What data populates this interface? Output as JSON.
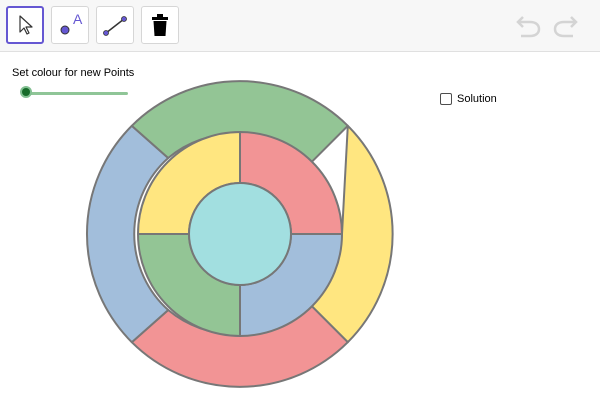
{
  "toolbar": {
    "tools": [
      {
        "icon": "arrow-pointer-icon",
        "selected": true
      },
      {
        "icon": "point-label-icon",
        "label": "A",
        "selected": false
      },
      {
        "icon": "segment-icon",
        "selected": false
      },
      {
        "icon": "trash-icon",
        "selected": false
      }
    ],
    "undo_icon": "undo-icon",
    "redo_icon": "redo-icon"
  },
  "slider": {
    "label": "Set colour for new Points",
    "value": 0
  },
  "solution": {
    "label": "Solution",
    "checked": false
  },
  "colors": {
    "red": "#f29495",
    "yellow": "#ffe680",
    "green": "#93c595",
    "blue": "#a2bedb",
    "cyan": "#a2dfe0",
    "outline": "#777777",
    "accent": "#6557d2"
  },
  "diagram": {
    "outer_ring": [
      "yellow",
      "red",
      "blue",
      "green"
    ],
    "inner_ring": [
      "red",
      "blue",
      "green",
      "yellow"
    ],
    "center": "cyan"
  }
}
